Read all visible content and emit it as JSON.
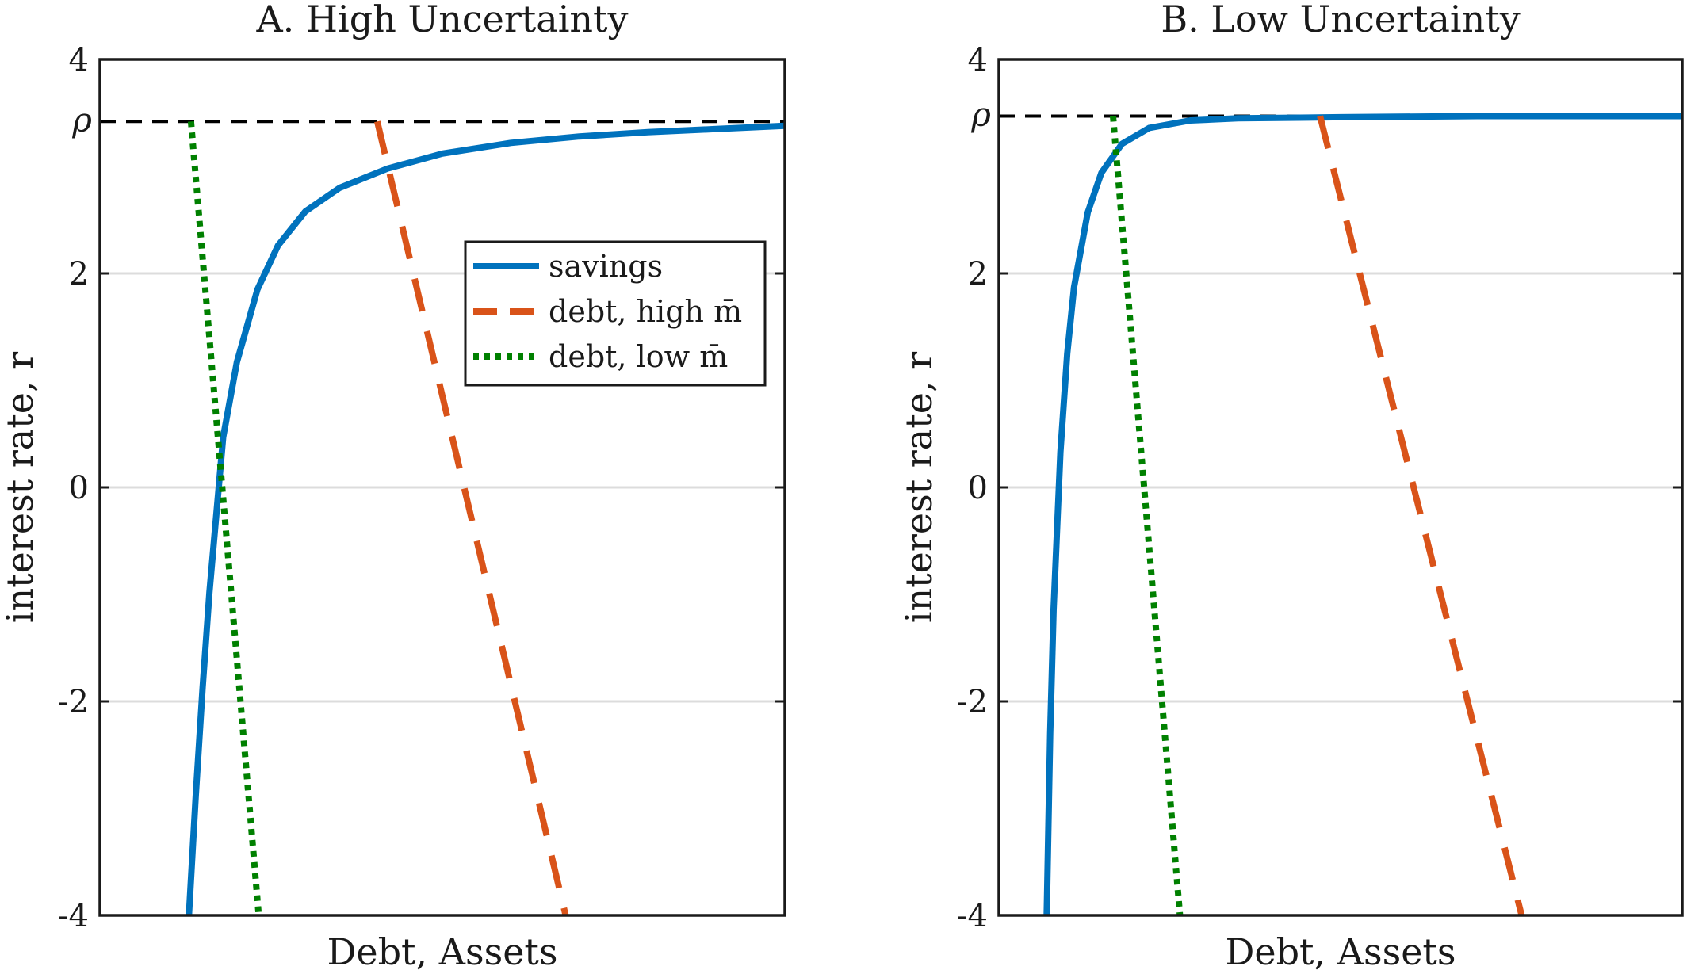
{
  "chart_data": [
    {
      "type": "line",
      "title": "A. High Uncertainty",
      "xlabel": "Debt, Assets",
      "ylabel": "interest rate, r",
      "ylim": [
        -4,
        4
      ],
      "xlim": [
        0,
        1
      ],
      "yticks": [
        "-4",
        "-2",
        "0",
        "2",
        "4"
      ],
      "grid": "horizontal at y ticks",
      "legend_position": "right-middle",
      "reference_line": {
        "label": "ρ",
        "y": 3.42
      },
      "series": [
        {
          "name": "savings",
          "style": "solid",
          "color": "#0072BD",
          "points": [
            [
              0.13,
              -4.0
            ],
            [
              0.14,
              -2.87
            ],
            [
              0.15,
              -1.87
            ],
            [
              0.16,
              -0.98
            ],
            [
              0.18,
              0.47
            ],
            [
              0.2,
              1.17
            ],
            [
              0.23,
              1.85
            ],
            [
              0.26,
              2.26
            ],
            [
              0.3,
              2.58
            ],
            [
              0.35,
              2.8
            ],
            [
              0.42,
              2.98
            ],
            [
              0.5,
              3.12
            ],
            [
              0.6,
              3.22
            ],
            [
              0.7,
              3.28
            ],
            [
              0.8,
              3.32
            ],
            [
              0.9,
              3.35
            ],
            [
              1.0,
              3.38
            ]
          ]
        },
        {
          "name": "debt, high m̄",
          "style": "dashed",
          "color": "#D95319",
          "points": [
            [
              0.405,
              3.42
            ],
            [
              0.68,
              -4.0
            ]
          ]
        },
        {
          "name": "debt, low m̄",
          "style": "dotted",
          "color": "#008000",
          "points": [
            [
              0.133,
              3.42
            ],
            [
              0.232,
              -4.0
            ]
          ]
        }
      ]
    },
    {
      "type": "line",
      "title": "B. Low Uncertainty",
      "xlabel": "Debt, Assets",
      "ylabel": "interest rate, r",
      "ylim": [
        -4,
        4
      ],
      "xlim": [
        0,
        1
      ],
      "yticks": [
        "-4",
        "-2",
        "0",
        "2",
        "4"
      ],
      "grid": "horizontal at y ticks",
      "reference_line": {
        "label": "ρ",
        "y": 3.47
      },
      "series": [
        {
          "name": "savings",
          "style": "solid",
          "color": "#0072BD",
          "points": [
            [
              0.07,
              -4.0
            ],
            [
              0.075,
              -2.3
            ],
            [
              0.08,
              -1.14
            ],
            [
              0.09,
              0.33
            ],
            [
              0.1,
              1.25
            ],
            [
              0.11,
              1.87
            ],
            [
              0.13,
              2.57
            ],
            [
              0.15,
              2.94
            ],
            [
              0.18,
              3.21
            ],
            [
              0.22,
              3.36
            ],
            [
              0.28,
              3.43
            ],
            [
              0.35,
              3.45
            ],
            [
              0.5,
              3.46
            ],
            [
              0.7,
              3.47
            ],
            [
              1.0,
              3.47
            ]
          ]
        },
        {
          "name": "debt, high m̄",
          "style": "dashed",
          "color": "#D95319",
          "points": [
            [
              0.47,
              3.47
            ],
            [
              0.765,
              -4.0
            ]
          ]
        },
        {
          "name": "debt, low m̄",
          "style": "dotted",
          "color": "#008000",
          "points": [
            [
              0.167,
              3.47
            ],
            [
              0.265,
              -4.0
            ]
          ]
        }
      ]
    }
  ]
}
